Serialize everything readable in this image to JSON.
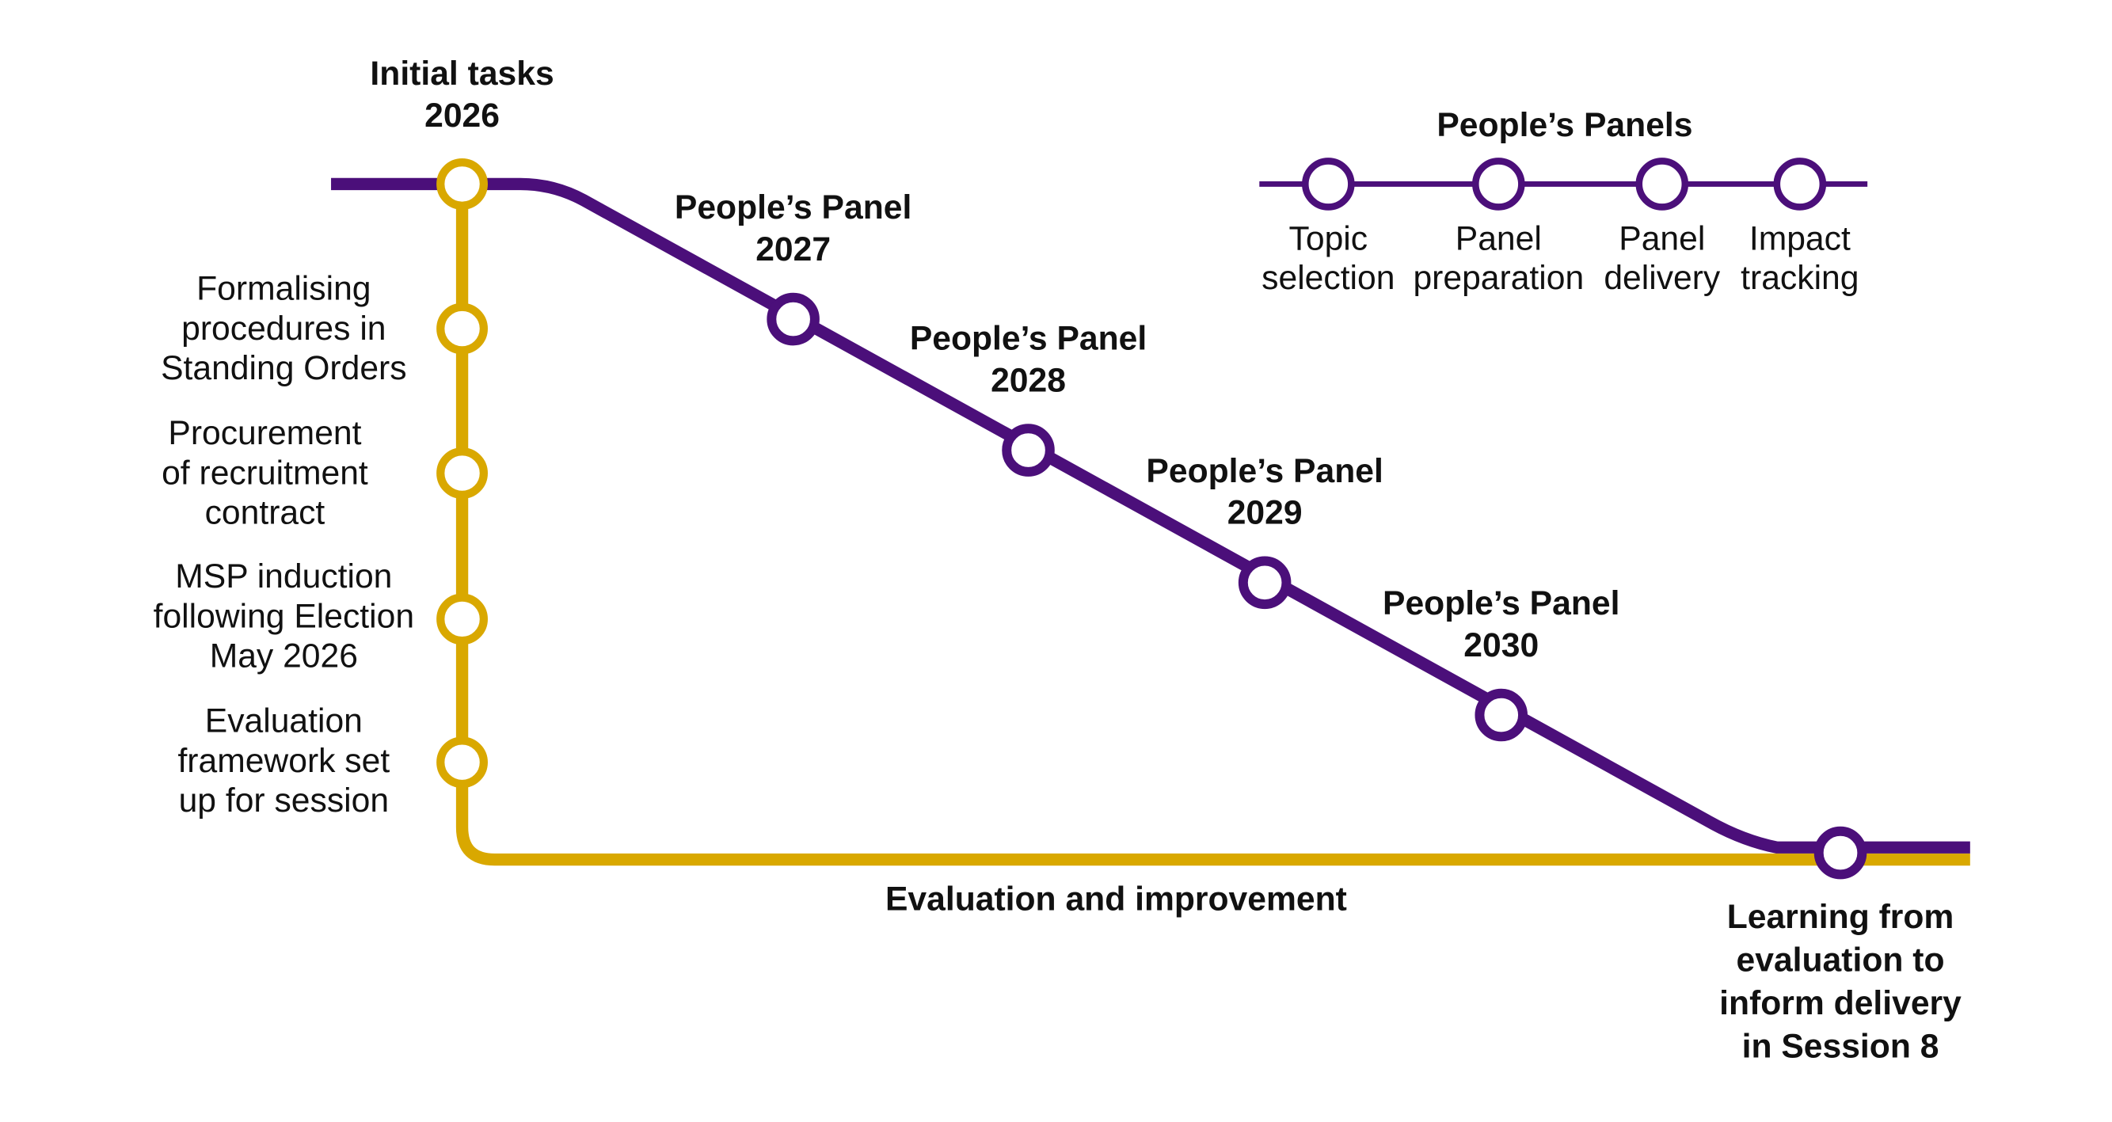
{
  "timeline": {
    "start": [
      "Initial tasks",
      "2026"
    ],
    "initial_tasks": [
      [
        "Formalising",
        "procedures in",
        "Standing Orders"
      ],
      [
        "Procurement",
        "of recruitment",
        "contract"
      ],
      [
        "MSP induction",
        "following Election",
        "May 2026"
      ],
      [
        "Evaluation",
        "framework set",
        "up for session"
      ]
    ],
    "panels": [
      [
        "People’s Panel",
        "2027"
      ],
      [
        "People’s Panel",
        "2028"
      ],
      [
        "People’s Panel",
        "2029"
      ],
      [
        "People’s Panel",
        "2030"
      ]
    ],
    "evaluation_line": "Evaluation and improvement",
    "end": [
      "Learning from",
      "evaluation to",
      "inform delivery",
      "in Session 8"
    ]
  },
  "legend": {
    "title": "People’s Panels",
    "stages": [
      [
        "Topic",
        "selection"
      ],
      [
        "Panel",
        "preparation"
      ],
      [
        "Panel",
        "delivery"
      ],
      [
        "Impact",
        "tracking"
      ]
    ]
  }
}
